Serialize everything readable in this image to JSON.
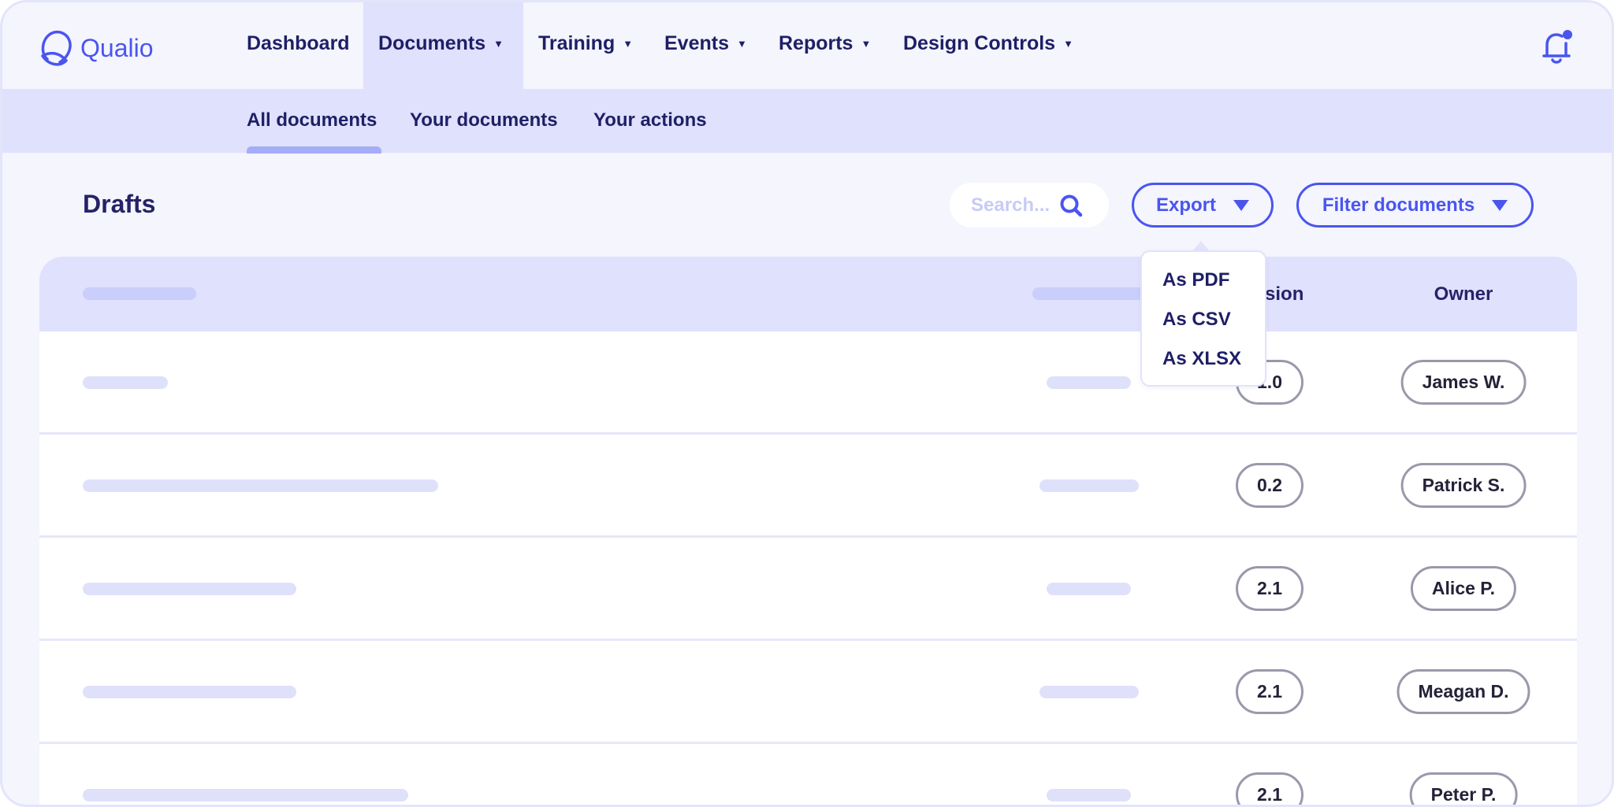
{
  "app": {
    "name": "Qualio",
    "accent": "#4a55f0"
  },
  "nav": {
    "items": [
      {
        "label": "Dashboard",
        "dropdown": false
      },
      {
        "label": "Documents",
        "dropdown": true,
        "active": true
      },
      {
        "label": "Training",
        "dropdown": true
      },
      {
        "label": "Events",
        "dropdown": true
      },
      {
        "label": "Reports",
        "dropdown": true
      },
      {
        "label": "Design Controls",
        "dropdown": true
      }
    ]
  },
  "subnav": {
    "items": [
      {
        "label": "All documents",
        "active": true
      },
      {
        "label": "Your documents"
      },
      {
        "label": "Your actions"
      }
    ]
  },
  "page": {
    "title": "Drafts"
  },
  "toolbar": {
    "search_placeholder": "Search...",
    "export_label": "Export",
    "filter_label": "Filter documents"
  },
  "export_menu": {
    "items": [
      "As PDF",
      "As CSV",
      "As XLSX"
    ]
  },
  "table": {
    "headers": {
      "version": "Version",
      "owner": "Owner"
    },
    "rows": [
      {
        "version": "1.0",
        "owner": "James W."
      },
      {
        "version": "0.2",
        "owner": "Patrick S."
      },
      {
        "version": "2.1",
        "owner": "Alice P."
      },
      {
        "version": "2.1",
        "owner": "Meagan D."
      },
      {
        "version": "2.1",
        "owner": "Peter P."
      }
    ]
  }
}
